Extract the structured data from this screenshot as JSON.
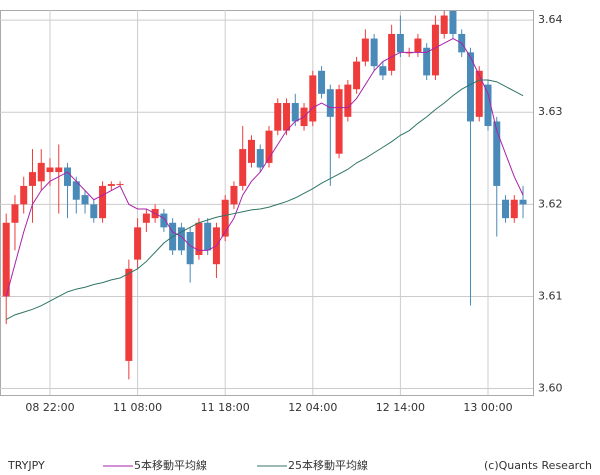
{
  "chart_data": {
    "type": "candlestick",
    "symbol": "TRYJPY",
    "credit": "(c)Quants Research",
    "categories": [
      null,
      null,
      null,
      null,
      null,
      "08 22:00",
      null,
      null,
      null,
      null,
      null,
      null,
      null,
      null,
      null,
      "11 08:00",
      null,
      null,
      null,
      null,
      null,
      null,
      null,
      null,
      null,
      "11 18:00",
      null,
      null,
      null,
      null,
      null,
      null,
      null,
      null,
      null,
      "12 04:00",
      null,
      null,
      null,
      null,
      null,
      null,
      null,
      null,
      null,
      "12 14:00",
      null,
      null,
      null,
      null,
      null,
      null,
      null,
      null,
      null,
      "13 00:00",
      null,
      null,
      null,
      null
    ],
    "open": [
      3.61,
      3.618,
      3.62,
      3.622,
      3.6225,
      3.6235,
      3.6235,
      3.624,
      3.6225,
      3.621,
      3.62,
      3.6185,
      3.622,
      3.6222,
      3.603,
      3.614,
      3.618,
      3.6185,
      3.619,
      3.618,
      3.6175,
      3.617,
      3.6145,
      3.618,
      3.6135,
      3.6165,
      3.62,
      3.622,
      3.6245,
      3.626,
      3.6245,
      3.628,
      3.628,
      3.631,
      3.6285,
      3.629,
      3.6345,
      3.6325,
      3.6255,
      3.6295,
      3.6325,
      3.6355,
      3.638,
      3.635,
      3.6345,
      3.6385,
      3.6365,
      3.6365,
      3.637,
      3.634,
      3.6385,
      3.641,
      3.6385,
      3.6365,
      3.6295,
      3.633,
      3.629,
      3.6205,
      3.6185,
      3.6205
    ],
    "high": [
      3.619,
      3.621,
      3.623,
      3.626,
      3.626,
      3.625,
      3.6265,
      3.6245,
      3.623,
      3.6215,
      3.6205,
      3.6225,
      3.6225,
      3.6225,
      3.614,
      3.6185,
      3.6195,
      3.62,
      3.6195,
      3.6185,
      3.618,
      3.6175,
      3.6185,
      3.6185,
      3.618,
      3.621,
      3.6225,
      3.6285,
      3.6275,
      3.6265,
      3.6285,
      3.6315,
      3.6315,
      3.632,
      3.631,
      3.6345,
      3.635,
      3.633,
      3.633,
      3.6335,
      3.636,
      3.639,
      3.6385,
      3.6355,
      3.6395,
      3.6405,
      3.637,
      3.6385,
      3.6375,
      3.6405,
      3.641,
      3.641,
      3.639,
      3.637,
      3.635,
      3.6335,
      3.6295,
      3.621,
      3.621,
      3.622
    ],
    "low": [
      3.607,
      3.615,
      3.619,
      3.618,
      3.6215,
      3.622,
      3.619,
      3.6185,
      3.619,
      3.619,
      3.618,
      3.618,
      3.6215,
      3.622,
      3.601,
      3.613,
      3.617,
      3.618,
      3.617,
      3.6145,
      3.6145,
      3.6115,
      3.614,
      3.6145,
      3.612,
      3.616,
      3.6195,
      3.6215,
      3.624,
      3.6235,
      3.624,
      3.6275,
      3.6275,
      3.6285,
      3.628,
      3.6285,
      3.6315,
      3.622,
      3.625,
      3.629,
      3.632,
      3.635,
      3.6345,
      3.6335,
      3.634,
      3.636,
      3.636,
      3.636,
      3.6335,
      3.6335,
      3.638,
      3.638,
      3.636,
      3.609,
      3.629,
      3.628,
      3.6165,
      3.618,
      3.618,
      3.6185
    ],
    "close": [
      3.618,
      3.62,
      3.622,
      3.6235,
      3.6245,
      3.624,
      3.624,
      3.622,
      3.6205,
      3.62,
      3.6185,
      3.622,
      3.6222,
      3.6222,
      3.613,
      3.6175,
      3.619,
      3.6195,
      3.6175,
      3.615,
      3.615,
      3.6135,
      3.618,
      3.615,
      3.6175,
      3.6205,
      3.622,
      3.626,
      3.627,
      3.624,
      3.628,
      3.631,
      3.631,
      3.629,
      3.6305,
      3.634,
      3.632,
      3.6295,
      3.6325,
      3.633,
      3.6355,
      3.638,
      3.635,
      3.634,
      3.6385,
      3.6365,
      3.6365,
      3.638,
      3.634,
      3.6395,
      3.6405,
      3.6385,
      3.6365,
      3.629,
      3.6345,
      3.6285,
      3.622,
      3.6185,
      3.6205,
      3.62
    ],
    "up_color": "#ee3b3b",
    "down_color": "#4a8ab8",
    "series": [
      {
        "name": "5本移動平均線",
        "color": "#aa22aa",
        "values": [
          3.61,
          3.6135,
          3.617,
          3.62,
          3.6215,
          3.6225,
          3.623,
          3.6235,
          3.6225,
          3.6215,
          3.6205,
          3.621,
          3.6215,
          3.622,
          3.62,
          3.6195,
          3.6195,
          3.619,
          3.6185,
          3.617,
          3.6165,
          3.6155,
          3.615,
          3.615,
          3.6155,
          3.617,
          3.6185,
          3.621,
          3.6225,
          3.6235,
          3.625,
          3.6265,
          3.628,
          3.629,
          3.6295,
          3.6305,
          3.631,
          3.6305,
          3.6305,
          3.6305,
          3.6315,
          3.633,
          3.6345,
          3.6355,
          3.636,
          3.6365,
          3.6365,
          3.6365,
          3.6365,
          3.637,
          3.6375,
          3.638,
          3.6375,
          3.636,
          3.634,
          3.632,
          3.628,
          3.6255,
          3.623,
          3.621
        ]
      },
      {
        "name": "25本移動平均線",
        "color": "#2f7566",
        "values": [
          3.6075,
          3.608,
          3.6083,
          3.6086,
          3.609,
          3.6095,
          3.61,
          3.6105,
          3.6108,
          3.611,
          3.6113,
          3.6115,
          3.6118,
          3.612,
          3.6125,
          3.613,
          3.6138,
          3.6148,
          3.6158,
          3.6165,
          3.617,
          3.6175,
          3.618,
          3.6183,
          3.6186,
          3.6188,
          3.619,
          3.6192,
          3.6194,
          3.6195,
          3.6197,
          3.62,
          3.6203,
          3.6207,
          3.6212,
          3.6217,
          3.6223,
          3.6228,
          3.6233,
          3.6238,
          3.6245,
          3.625,
          3.6256,
          3.6262,
          3.6268,
          3.6275,
          3.628,
          3.6288,
          3.6295,
          3.6303,
          3.631,
          3.6318,
          3.6325,
          3.633,
          3.6335,
          3.6335,
          3.6333,
          3.6328,
          3.6323,
          3.6318
        ]
      }
    ],
    "ylim": [
      3.5993,
      3.6411
    ],
    "yticks": [
      {
        "value": 3.6,
        "label": "3.60"
      },
      3.61,
      3.62,
      3.63,
      3.64
    ],
    "grid": true
  }
}
